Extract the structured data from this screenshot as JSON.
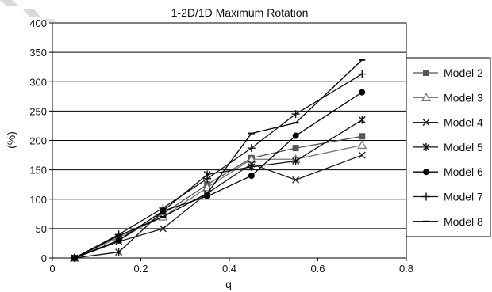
{
  "chart_data": {
    "type": "line",
    "title": "1-2D/1D Maximum Rotation",
    "xlabel": "q",
    "ylabel": "(%)",
    "xlim": [
      0,
      0.8
    ],
    "ylim": [
      0,
      400
    ],
    "x_ticks": [
      "0",
      "0.2",
      "0.4",
      "0.6",
      "0.8"
    ],
    "y_ticks": [
      "0",
      "50",
      "100",
      "150",
      "200",
      "250",
      "300",
      "350",
      "400"
    ],
    "grid": "horizontal",
    "legend_position": "right",
    "x": [
      0.05,
      0.15,
      0.25,
      0.35,
      0.45,
      0.55,
      0.7
    ],
    "series": [
      {
        "name": "Model 2",
        "marker": "square",
        "color": "#555555",
        "values": [
          0,
          30,
          75,
          125,
          170,
          187,
          207
        ]
      },
      {
        "name": "Model 3",
        "marker": "triangle",
        "color": "#777777",
        "values": [
          0,
          35,
          70,
          120,
          168,
          168,
          192
        ]
      },
      {
        "name": "Model 4",
        "marker": "x",
        "color": "#222222",
        "values": [
          0,
          28,
          50,
          110,
          160,
          133,
          175
        ]
      },
      {
        "name": "Model 5",
        "marker": "star",
        "color": "#111111",
        "values": [
          0,
          10,
          80,
          142,
          155,
          165,
          235
        ]
      },
      {
        "name": "Model 6",
        "marker": "circle",
        "color": "#000000",
        "values": [
          0,
          30,
          80,
          105,
          140,
          208,
          282
        ]
      },
      {
        "name": "Model 7",
        "marker": "plus",
        "color": "#111111",
        "values": [
          0,
          40,
          85,
          135,
          187,
          245,
          313
        ]
      },
      {
        "name": "Model 8",
        "marker": "dash",
        "color": "#000000",
        "values": [
          0,
          38,
          70,
          110,
          212,
          230,
          337
        ]
      }
    ]
  }
}
